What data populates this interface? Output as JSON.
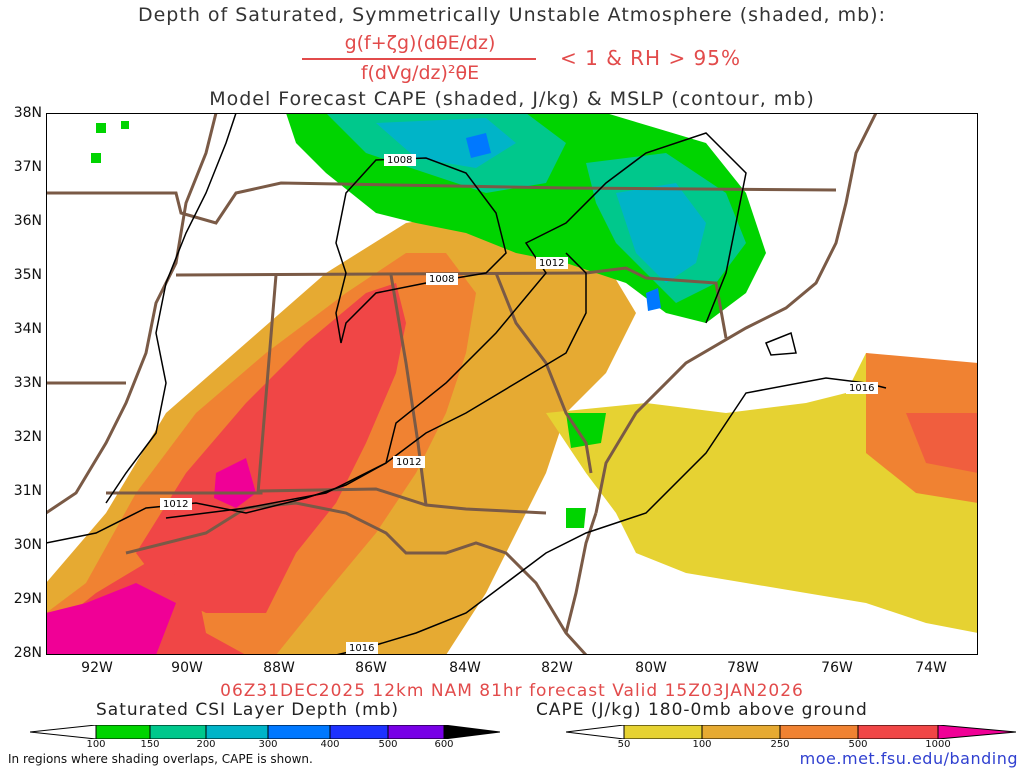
{
  "header": {
    "line1": "Depth of Saturated, Symmetrically Unstable Atmosphere (shaded, mb):",
    "numerator": "g(f+ζg)(dθE/dz)",
    "denominator": "f(dVg/dz)²θE",
    "condition": "< 1 & RH > 95%",
    "line3": "Model Forecast CAPE (shaded, J/kg) & MSLP (contour, mb)"
  },
  "axes": {
    "lat_labels": [
      "38N",
      "37N",
      "36N",
      "35N",
      "34N",
      "33N",
      "32N",
      "31N",
      "30N",
      "29N",
      "28N"
    ],
    "lon_labels": [
      "92W",
      "90W",
      "88W",
      "86W",
      "84W",
      "82W",
      "80W",
      "78W",
      "76W",
      "74W"
    ]
  },
  "contours": {
    "labels": [
      "1008",
      "1008",
      "1012",
      "1012",
      "1012",
      "1016",
      "1016"
    ]
  },
  "footer": {
    "valid": "06Z31DEC2025 12km NAM 81hr forecast Valid 15Z03JAN2026",
    "csi_title": "Saturated CSI Layer Depth (mb)",
    "cape_title": "CAPE (J/kg) 180-0mb above ground",
    "csi_ticks": [
      "100",
      "150",
      "200",
      "300",
      "400",
      "500",
      "600"
    ],
    "cape_ticks": [
      "50",
      "100",
      "250",
      "500",
      "1000"
    ],
    "note": "In regions where shading overlaps, CAPE is shown.",
    "url": "moe.met.fsu.edu/banding"
  },
  "colors": {
    "csi": [
      "#ffffff",
      "#00d400",
      "#00c88c",
      "#00b4c8",
      "#0078ff",
      "#1e32ff",
      "#7800e6",
      "#000000"
    ],
    "cape": [
      "#ffffff",
      "#e6d232",
      "#e6aa32",
      "#f08232",
      "#f04646",
      "#f00096"
    ],
    "state_lines": "#7a5a46",
    "title_red": "#e24b4b"
  }
}
